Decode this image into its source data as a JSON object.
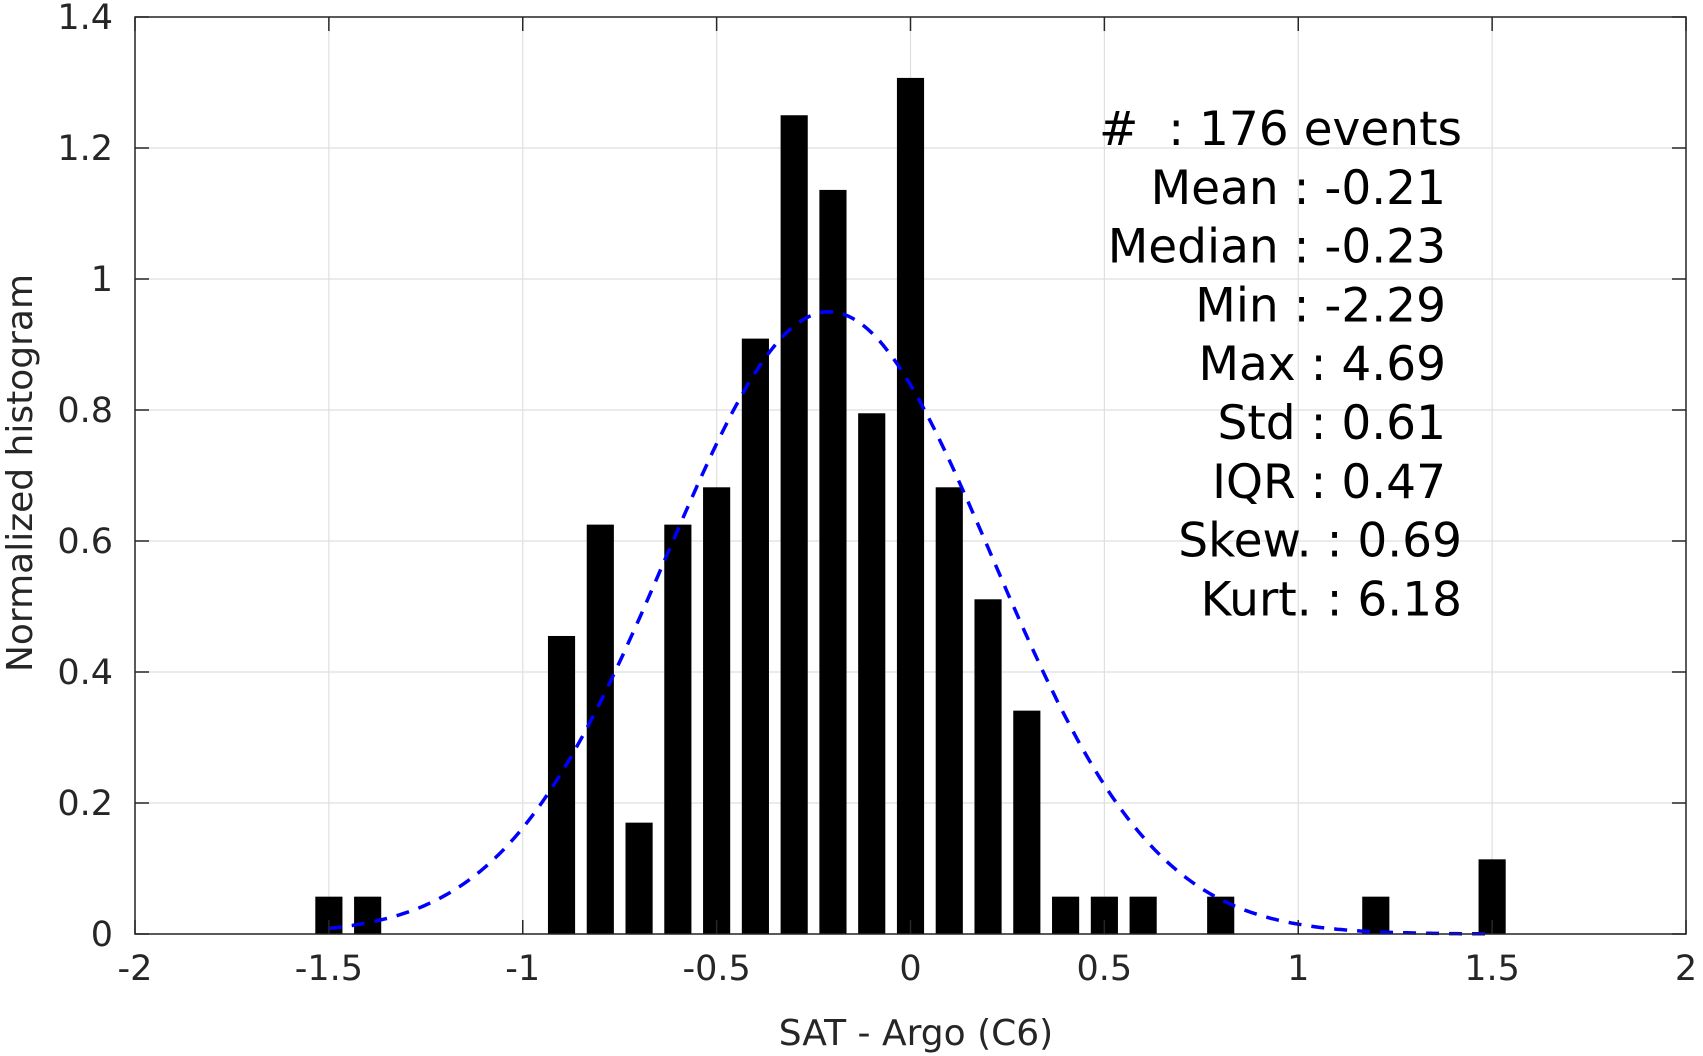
{
  "chart_data": {
    "type": "bar",
    "xlabel": "SAT - Argo (C6)",
    "ylabel": "Normalized histogram",
    "xlim": [
      -2,
      2
    ],
    "ylim": [
      0,
      1.4
    ],
    "grid": true,
    "xticks": [
      "-2",
      "-1.5",
      "-1",
      "-0.5",
      "0",
      "0.5",
      "1",
      "1.5",
      "2"
    ],
    "yticks": [
      "0",
      "0.2",
      "0.4",
      "0.6",
      "0.8",
      "1",
      "1.2",
      "1.4"
    ],
    "bin_width": 0.1,
    "bars": [
      {
        "x": -1.5,
        "y": 0.057
      },
      {
        "x": -1.4,
        "y": 0.057
      },
      {
        "x": -0.9,
        "y": 0.455
      },
      {
        "x": -0.8,
        "y": 0.625
      },
      {
        "x": -0.7,
        "y": 0.17
      },
      {
        "x": -0.6,
        "y": 0.625
      },
      {
        "x": -0.5,
        "y": 0.682
      },
      {
        "x": -0.4,
        "y": 0.909
      },
      {
        "x": -0.3,
        "y": 1.25
      },
      {
        "x": -0.2,
        "y": 1.136
      },
      {
        "x": -0.1,
        "y": 0.795
      },
      {
        "x": 0.0,
        "y": 1.307
      },
      {
        "x": 0.1,
        "y": 0.682
      },
      {
        "x": 0.2,
        "y": 0.511
      },
      {
        "x": 0.3,
        "y": 0.341
      },
      {
        "x": 0.4,
        "y": 0.057
      },
      {
        "x": 0.5,
        "y": 0.057
      },
      {
        "x": 0.6,
        "y": 0.057
      },
      {
        "x": 0.8,
        "y": 0.057
      },
      {
        "x": 1.2,
        "y": 0.057
      },
      {
        "x": 1.5,
        "y": 0.114
      }
    ],
    "fit_curve": {
      "type": "gaussian",
      "mean": -0.21,
      "std": 0.42,
      "x_range": [
        -1.5,
        1.5
      ],
      "color": "#0000ff",
      "style": "dashed"
    },
    "bar_color": "#000000",
    "stats": [
      "#  : 176 events",
      "Mean : -0.21",
      "Median : -0.23",
      "Min : -2.29",
      "Max : 4.69",
      "Std : 0.61",
      "IQR : 0.47",
      "Skew. : 0.69",
      "Kurt. : 6.18"
    ]
  }
}
